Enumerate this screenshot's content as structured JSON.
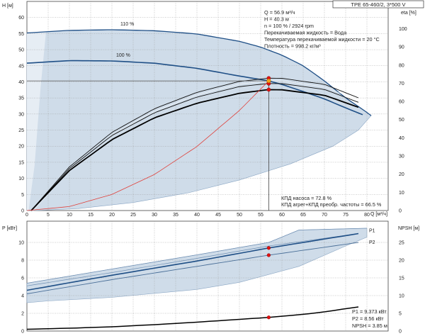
{
  "title": "TPE 65-460/2, 3*500 V",
  "info_top": [
    "Q = 56.9 м³/ч",
    "H = 40.3 м",
    "n = 100 % / 2924 rpm",
    "Перекачиваемая жидкость = Вода",
    "Температура перекачиваемой жидкости = 20 °C",
    "Плотность = 998.2 кг/м³"
  ],
  "info_mid": [
    "КПД насоса = 72.8 %",
    "КПД агрег+КПД преобр. частоты = 66.5 %"
  ],
  "info_bottom": [
    "P1 = 9.373 кВт",
    "P2 = 8.56 кВт",
    "NPSH = 3.85 м"
  ],
  "colors": {
    "band": "#cfdce9",
    "band_light": "#e6edf4",
    "curve": "#1f4f86",
    "system": "#e0403a",
    "marker": "#e01010",
    "duty": "#f2a21b",
    "grid": "#9a9a9a"
  },
  "chart_data": [
    {
      "type": "line",
      "name": "upper",
      "xlabel": "Q [м³/ч]",
      "ylabel_left": "H [м]",
      "ylabel_right": "eta [%]",
      "x_ticks": [
        0,
        5,
        10,
        15,
        20,
        25,
        30,
        35,
        40,
        45,
        50,
        55,
        60,
        65,
        70,
        75,
        80
      ],
      "y_left_ticks": [
        0,
        5,
        10,
        15,
        20,
        25,
        30,
        35,
        40,
        45,
        50,
        55,
        60
      ],
      "y_right_ticks": [
        0,
        10,
        20,
        30,
        40,
        50,
        60,
        70,
        80,
        90,
        100
      ],
      "xlim": [
        0,
        85
      ],
      "ylim_left": [
        0,
        65
      ],
      "ylim_right": [
        0,
        115
      ],
      "head_110": {
        "label": "110 %",
        "x": [
          0,
          10,
          20,
          30,
          40,
          50,
          55,
          60,
          65,
          70,
          75,
          80,
          81
        ],
        "y": [
          55.2,
          56.0,
          56.2,
          55.9,
          54.9,
          52.6,
          50.8,
          48.3,
          45.0,
          40.3,
          35.0,
          30.5,
          29.5
        ]
      },
      "head_100": {
        "label": "100 %",
        "x": [
          0,
          10,
          20,
          30,
          40,
          50,
          56.9,
          60,
          65,
          70,
          75,
          79
        ],
        "y": [
          45.8,
          46.6,
          46.5,
          45.8,
          44.2,
          41.8,
          40.3,
          39.2,
          37.0,
          34.7,
          31.9,
          29.8
        ]
      },
      "system_curve": {
        "x": [
          0,
          10,
          20,
          30,
          40,
          50,
          56.9
        ],
        "y": [
          0,
          1.25,
          5.0,
          11.2,
          19.9,
          31.1,
          40.3
        ]
      },
      "duty_point": {
        "x": 56.9,
        "y": 40.3
      },
      "eta_pump": {
        "x": [
          1,
          10,
          20,
          30,
          40,
          50,
          56.9,
          60,
          70,
          78
        ],
        "y": [
          0,
          24,
          43,
          56,
          65,
          71,
          72.8,
          72.7,
          69.4,
          62.0
        ]
      },
      "eta_total": {
        "x": [
          1,
          10,
          20,
          30,
          40,
          50,
          56.9,
          60,
          70,
          78
        ],
        "y": [
          0,
          22,
          39,
          51,
          59,
          64.5,
          66.5,
          66.4,
          63.4,
          56.8
        ]
      },
      "eta_markers": [
        72.8,
        69.8,
        66.5
      ]
    },
    {
      "type": "line",
      "name": "lower",
      "xlabel": "",
      "ylabel_left": "P [кВт]",
      "ylabel_right": "NPSH [м]",
      "y_left_ticks": [
        0,
        2,
        4,
        6,
        8,
        10
      ],
      "y_right_ticks": [
        0,
        5,
        10,
        15,
        20,
        25
      ],
      "ylim_left": [
        0,
        12.4
      ],
      "ylim_right": [
        0,
        31
      ],
      "P1": {
        "label": "P1",
        "x": [
          0,
          20,
          40,
          56.9,
          78
        ],
        "y": [
          4.6,
          6.3,
          7.9,
          9.373,
          11.0
        ]
      },
      "P2": {
        "label": "P2",
        "x": [
          0,
          20,
          40,
          56.9,
          78
        ],
        "y": [
          4.2,
          5.8,
          7.3,
          8.56,
          10.0
        ]
      },
      "npsh": {
        "x": [
          0,
          10,
          20,
          30,
          40,
          50,
          56.9,
          65,
          70,
          75,
          78
        ],
        "y": [
          0.5,
          0.8,
          1.2,
          1.8,
          2.5,
          3.3,
          3.85,
          4.7,
          5.4,
          6.3,
          6.8
        ]
      }
    }
  ]
}
